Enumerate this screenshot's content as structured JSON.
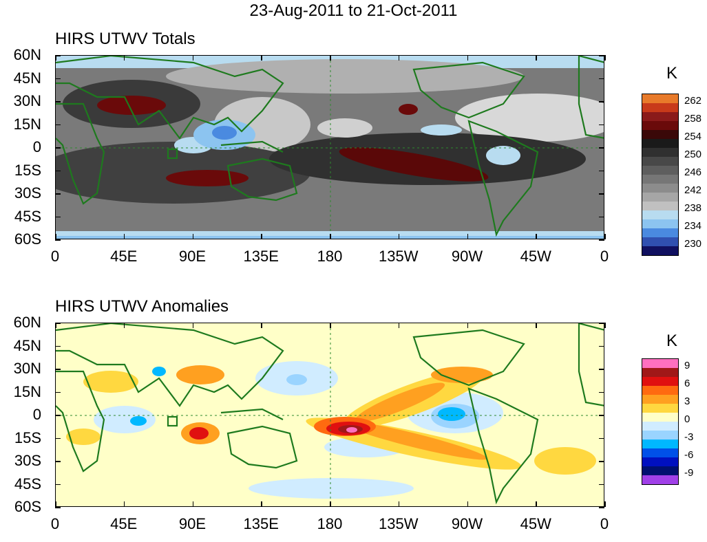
{
  "title": "23-Aug-2011 to 21-Oct-2011",
  "panels": [
    {
      "title": "HIRS UTWV Totals",
      "unit": "K",
      "colorbar_labels": [
        "262",
        "258",
        "254",
        "250",
        "246",
        "242",
        "238",
        "234",
        "230"
      ],
      "colorbar_colors": [
        "#e87a2a",
        "#c83a1a",
        "#8a1a1a",
        "#6a0a0a",
        "#3a0808",
        "#1a1a1a",
        "#303030",
        "#484848",
        "#5e5e5e",
        "#767676",
        "#8c8c8c",
        "#a6a6a6",
        "#c0c0c0",
        "#b8dcf0",
        "#8cc4f0",
        "#4a8ae0",
        "#3050b0",
        "#101060"
      ]
    },
    {
      "title": "HIRS UTWV Anomalies",
      "unit": "K",
      "colorbar_labels": [
        "9",
        "6",
        "3",
        "0",
        "-3",
        "-6",
        "-9"
      ],
      "colorbar_colors": [
        "#ff70c0",
        "#a01818",
        "#e01010",
        "#ff6a10",
        "#ffa020",
        "#ffd840",
        "#ffffc8",
        "#d0ecff",
        "#9ad4ff",
        "#00b8ff",
        "#0050e8",
        "#0010c0",
        "#001070",
        "#a040e8"
      ]
    }
  ],
  "lat_labels": [
    "60N",
    "45N",
    "30N",
    "15N",
    "0",
    "15S",
    "30S",
    "45S",
    "60S"
  ],
  "lon_labels": [
    "0",
    "45E",
    "90E",
    "135E",
    "180",
    "135W",
    "90W",
    "45W",
    "0"
  ],
  "colors": {
    "coast": "#1e7a1e",
    "ref_line": "#2e8a2e"
  }
}
